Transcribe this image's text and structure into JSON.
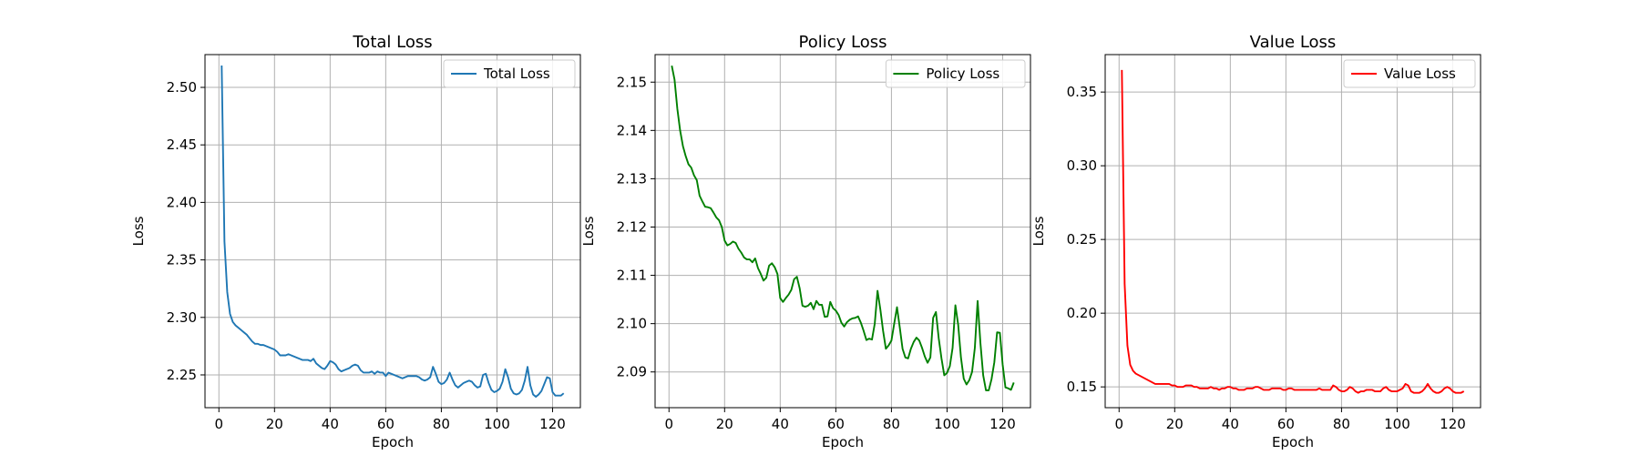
{
  "chart_data": [
    {
      "type": "line",
      "title": "Total Loss",
      "xlabel": "Epoch",
      "ylabel": "Loss",
      "xlim": [
        -5,
        130
      ],
      "ylim": [
        2.2215,
        2.5285
      ],
      "xticks": [
        0,
        20,
        40,
        60,
        80,
        100,
        120
      ],
      "xtick_labels": [
        "0",
        "20",
        "40",
        "60",
        "80",
        "100",
        "120"
      ],
      "yticks": [
        2.25,
        2.3,
        2.35,
        2.4,
        2.45,
        2.5
      ],
      "ytick_labels": [
        "2.25",
        "2.30",
        "2.35",
        "2.40",
        "2.45",
        "2.50"
      ],
      "grid": true,
      "legend_position": "top-right",
      "series": [
        {
          "name": "Total Loss",
          "color": "#1f77b4",
          "x_start": 1,
          "values": [
            2.519,
            2.366,
            2.322,
            2.303,
            2.296,
            2.293,
            2.291,
            2.289,
            2.287,
            2.285,
            2.282,
            2.279,
            2.277,
            2.277,
            2.276,
            2.276,
            2.275,
            2.274,
            2.273,
            2.272,
            2.27,
            2.267,
            2.267,
            2.267,
            2.268,
            2.267,
            2.266,
            2.265,
            2.264,
            2.263,
            2.263,
            2.263,
            2.262,
            2.264,
            2.26,
            2.258,
            2.256,
            2.255,
            2.258,
            2.262,
            2.261,
            2.259,
            2.255,
            2.253,
            2.254,
            2.255,
            2.256,
            2.258,
            2.259,
            2.258,
            2.254,
            2.252,
            2.252,
            2.252,
            2.253,
            2.251,
            2.253,
            2.252,
            2.252,
            2.249,
            2.252,
            2.251,
            2.25,
            2.249,
            2.248,
            2.247,
            2.248,
            2.249,
            2.249,
            2.249,
            2.249,
            2.248,
            2.246,
            2.245,
            2.246,
            2.248,
            2.257,
            2.251,
            2.244,
            2.242,
            2.243,
            2.246,
            2.252,
            2.246,
            2.241,
            2.239,
            2.241,
            2.243,
            2.244,
            2.245,
            2.244,
            2.241,
            2.239,
            2.24,
            2.25,
            2.251,
            2.243,
            2.237,
            2.235,
            2.236,
            2.238,
            2.244,
            2.255,
            2.248,
            2.238,
            2.234,
            2.233,
            2.234,
            2.237,
            2.245,
            2.257,
            2.241,
            2.233,
            2.231,
            2.233,
            2.236,
            2.242,
            2.248,
            2.247,
            2.235,
            2.232,
            2.232,
            2.232,
            2.234
          ]
        }
      ]
    },
    {
      "type": "line",
      "title": "Policy Loss",
      "xlabel": "Epoch",
      "ylabel": "Loss",
      "xlim": [
        -5,
        130
      ],
      "ylim": [
        2.0826,
        2.1557
      ],
      "xticks": [
        0,
        20,
        40,
        60,
        80,
        100,
        120
      ],
      "xtick_labels": [
        "0",
        "20",
        "40",
        "60",
        "80",
        "100",
        "120"
      ],
      "yticks": [
        2.09,
        2.1,
        2.11,
        2.12,
        2.13,
        2.14,
        2.15
      ],
      "ytick_labels": [
        "2.09",
        "2.10",
        "2.11",
        "2.12",
        "2.13",
        "2.14",
        "2.15"
      ],
      "grid": true,
      "legend_position": "top-right",
      "series": [
        {
          "name": "Policy Loss",
          "color": "#008000",
          "x_start": 1,
          "values": [
            2.1534,
            2.1505,
            2.1445,
            2.14,
            2.1368,
            2.1347,
            2.133,
            2.1323,
            2.1307,
            2.1297,
            2.1265,
            2.1253,
            2.1242,
            2.1241,
            2.1239,
            2.123,
            2.122,
            2.1214,
            2.12,
            2.1172,
            2.1162,
            2.1165,
            2.117,
            2.1167,
            2.1155,
            2.1147,
            2.1137,
            2.1133,
            2.1133,
            2.1127,
            2.1135,
            2.1115,
            2.1103,
            2.1089,
            2.1095,
            2.112,
            2.1125,
            2.1117,
            2.1103,
            2.1053,
            2.1045,
            2.1053,
            2.106,
            2.107,
            2.1092,
            2.1097,
            2.1073,
            2.1037,
            2.1035,
            2.1037,
            2.1043,
            2.103,
            2.1047,
            2.1039,
            2.1039,
            2.1014,
            2.1015,
            2.1045,
            2.1032,
            2.1027,
            2.1018,
            2.1002,
            2.0994,
            2.1003,
            2.1008,
            2.1011,
            2.1012,
            2.1015,
            2.1002,
            2.0985,
            2.0966,
            2.0969,
            2.0967,
            2.1,
            2.1068,
            2.103,
            2.0985,
            2.0948,
            2.0955,
            2.0965,
            2.1,
            2.1034,
            2.0992,
            2.0948,
            2.093,
            2.0928,
            2.0948,
            2.0962,
            2.0971,
            2.0965,
            2.095,
            2.0932,
            2.0919,
            2.093,
            2.1012,
            2.1024,
            2.097,
            2.0928,
            2.0893,
            2.0898,
            2.0912,
            2.095,
            2.1038,
            2.0998,
            2.093,
            2.0886,
            2.0874,
            2.0883,
            2.09,
            2.095,
            2.1047,
            2.096,
            2.0893,
            2.0862,
            2.0862,
            2.0885,
            2.092,
            2.0982,
            2.0981,
            2.0915,
            2.0868,
            2.0866,
            2.0863,
            2.0878
          ]
        }
      ]
    },
    {
      "type": "line",
      "title": "Value Loss",
      "xlabel": "Epoch",
      "ylabel": "Loss",
      "xlim": [
        -5,
        130
      ],
      "ylim": [
        0.1359,
        0.3754
      ],
      "xticks": [
        0,
        20,
        40,
        60,
        80,
        100,
        120
      ],
      "xtick_labels": [
        "0",
        "20",
        "40",
        "60",
        "80",
        "100",
        "120"
      ],
      "yticks": [
        0.15,
        0.2,
        0.25,
        0.3,
        0.35
      ],
      "ytick_labels": [
        "0.15",
        "0.20",
        "0.25",
        "0.30",
        "0.35"
      ],
      "grid": true,
      "legend_position": "top-right",
      "series": [
        {
          "name": "Value Loss",
          "color": "#ff0000",
          "x_start": 1,
          "values": [
            0.365,
            0.22,
            0.178,
            0.165,
            0.161,
            0.159,
            0.158,
            0.157,
            0.156,
            0.155,
            0.154,
            0.153,
            0.152,
            0.152,
            0.152,
            0.152,
            0.152,
            0.152,
            0.151,
            0.151,
            0.15,
            0.15,
            0.15,
            0.151,
            0.151,
            0.151,
            0.15,
            0.15,
            0.149,
            0.149,
            0.149,
            0.149,
            0.15,
            0.149,
            0.149,
            0.148,
            0.149,
            0.149,
            0.15,
            0.15,
            0.149,
            0.149,
            0.148,
            0.148,
            0.148,
            0.149,
            0.149,
            0.149,
            0.15,
            0.15,
            0.149,
            0.148,
            0.148,
            0.148,
            0.149,
            0.149,
            0.149,
            0.149,
            0.148,
            0.148,
            0.149,
            0.149,
            0.148,
            0.148,
            0.148,
            0.148,
            0.148,
            0.148,
            0.148,
            0.148,
            0.148,
            0.149,
            0.148,
            0.148,
            0.148,
            0.148,
            0.151,
            0.15,
            0.148,
            0.147,
            0.147,
            0.148,
            0.15,
            0.149,
            0.147,
            0.146,
            0.147,
            0.147,
            0.148,
            0.148,
            0.148,
            0.147,
            0.147,
            0.147,
            0.149,
            0.15,
            0.148,
            0.147,
            0.147,
            0.147,
            0.148,
            0.149,
            0.152,
            0.151,
            0.147,
            0.146,
            0.146,
            0.146,
            0.147,
            0.149,
            0.152,
            0.149,
            0.147,
            0.146,
            0.146,
            0.147,
            0.149,
            0.15,
            0.149,
            0.147,
            0.146,
            0.146,
            0.146,
            0.147
          ]
        }
      ]
    }
  ]
}
